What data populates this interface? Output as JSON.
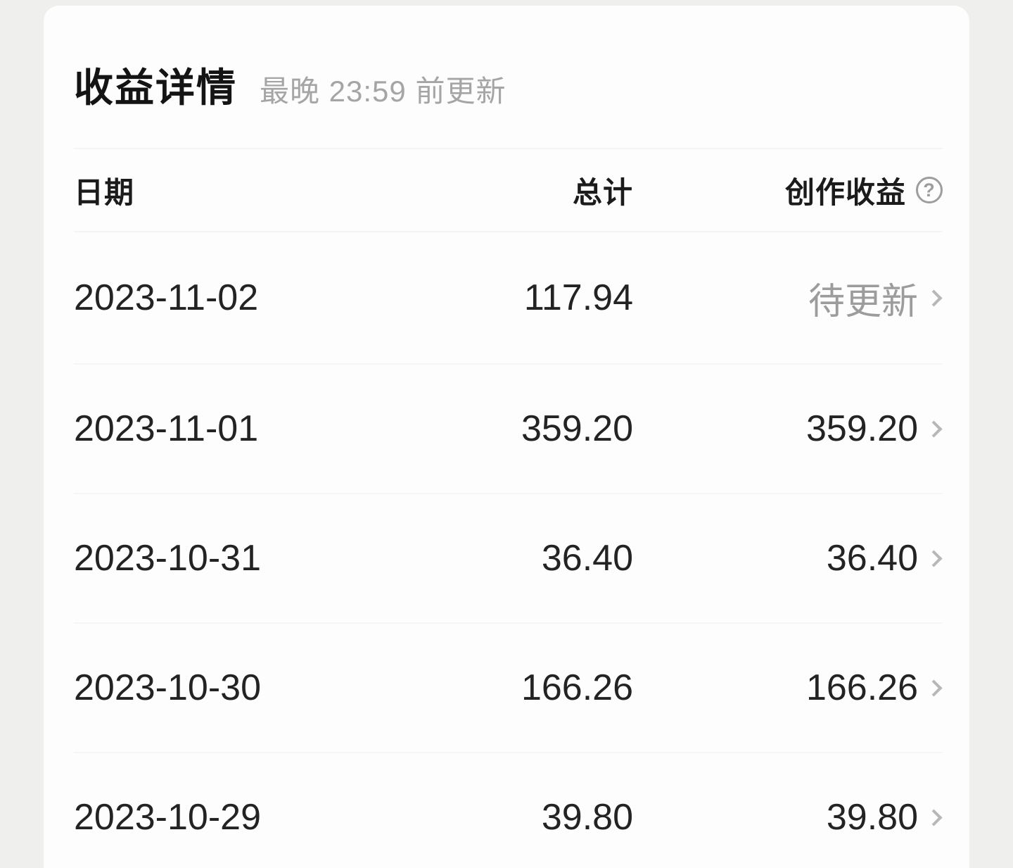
{
  "header": {
    "title": "收益详情",
    "update_note": "最晚 23:59 前更新"
  },
  "table": {
    "columns": {
      "date": "日期",
      "total": "总计",
      "creation": "创作收益"
    },
    "help_icon_glyph": "?",
    "rows": [
      {
        "date": "2023-11-02",
        "total": "117.94",
        "creation": "待更新",
        "pending": true
      },
      {
        "date": "2023-11-01",
        "total": "359.20",
        "creation": "359.20",
        "pending": false
      },
      {
        "date": "2023-10-31",
        "total": "36.40",
        "creation": "36.40",
        "pending": false
      },
      {
        "date": "2023-10-30",
        "total": "166.26",
        "creation": "166.26",
        "pending": false
      },
      {
        "date": "2023-10-29",
        "total": "39.80",
        "creation": "39.80",
        "pending": false
      }
    ]
  },
  "colors": {
    "page_bg": "#efefee",
    "card_bg": "#fdfdfd",
    "text_primary": "#232323",
    "text_muted": "#9c9c9c",
    "divider": "#f4f4f2"
  }
}
